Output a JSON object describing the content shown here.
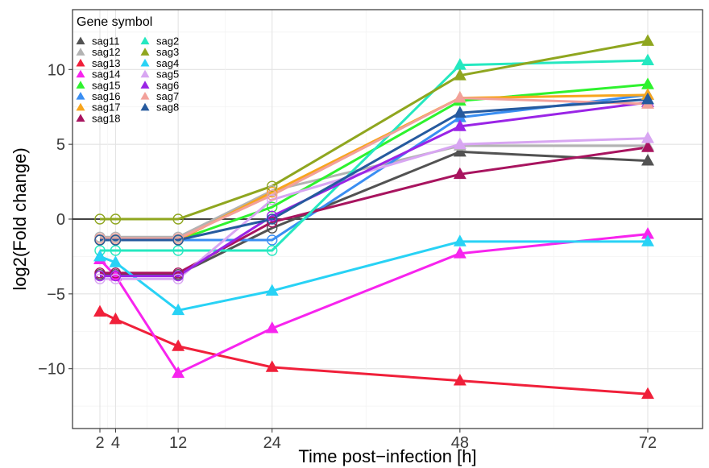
{
  "chart_data": {
    "type": "line",
    "xlabel": "Time post−infection [h]",
    "ylabel": "log2(Fold change)",
    "x": [
      2,
      4,
      12,
      24,
      48,
      72
    ],
    "x_ticks": [
      2,
      4,
      12,
      24,
      48,
      72
    ],
    "y_ticks": [
      -10,
      -5,
      0,
      5,
      10
    ],
    "xlim": [
      -1.5,
      79
    ],
    "ylim": [
      -14,
      14
    ],
    "reference_line_y": 0,
    "grid": true,
    "legend": {
      "title": "Gene symbol",
      "placement": "top-left"
    },
    "marker_note": "hollow circle = not significant, filled triangle = significant",
    "series": [
      {
        "name": "sag11",
        "color": "#525252",
        "values": [
          -3.7,
          -3.7,
          -3.7,
          -0.6,
          4.5,
          3.9
        ],
        "significant": [
          false,
          false,
          false,
          false,
          true,
          true
        ]
      },
      {
        "name": "sag12",
        "color": "#b3b3b3",
        "values": [
          -1.2,
          -1.2,
          -1.2,
          1.9,
          4.9,
          4.9
        ],
        "significant": [
          false,
          false,
          false,
          false,
          true,
          true
        ]
      },
      {
        "name": "sag13",
        "color": "#f0203a",
        "values": [
          -6.2,
          -6.7,
          -8.5,
          -9.9,
          -10.8,
          -11.7
        ],
        "significant": [
          true,
          true,
          true,
          true,
          true,
          true
        ]
      },
      {
        "name": "sag14",
        "color": "#f724ee",
        "values": [
          -2.7,
          -3.8,
          -10.3,
          -7.3,
          -2.3,
          -1.0
        ],
        "significant": [
          true,
          true,
          true,
          true,
          true,
          true
        ]
      },
      {
        "name": "sag15",
        "color": "#2ef22e",
        "values": [
          -1.4,
          -1.4,
          -1.4,
          0.8,
          7.9,
          9.0
        ],
        "significant": [
          false,
          false,
          false,
          false,
          true,
          true
        ]
      },
      {
        "name": "sag16",
        "color": "#3a8ef2",
        "values": [
          -1.4,
          -1.4,
          -1.4,
          -1.4,
          6.8,
          8.3
        ],
        "significant": [
          false,
          false,
          false,
          false,
          true,
          true
        ]
      },
      {
        "name": "sag17",
        "color": "#f7a51d",
        "values": [
          -1.4,
          -1.4,
          -1.4,
          1.8,
          8.1,
          8.3
        ],
        "significant": [
          false,
          false,
          false,
          false,
          true,
          true
        ]
      },
      {
        "name": "sag18",
        "color": "#a8145f",
        "values": [
          -3.6,
          -3.6,
          -3.6,
          -0.2,
          3.0,
          4.8
        ],
        "significant": [
          false,
          false,
          false,
          false,
          true,
          true
        ]
      },
      {
        "name": "sag2",
        "color": "#25e8c0",
        "values": [
          -2.1,
          -2.1,
          -2.1,
          -2.1,
          10.3,
          10.6
        ],
        "significant": [
          false,
          false,
          false,
          false,
          true,
          true
        ]
      },
      {
        "name": "sag3",
        "color": "#8fa61f",
        "values": [
          0,
          0,
          0,
          2.2,
          9.6,
          11.9
        ],
        "significant": [
          false,
          false,
          false,
          false,
          true,
          true
        ]
      },
      {
        "name": "sag4",
        "color": "#28d2f5",
        "values": [
          -2.5,
          -2.9,
          -6.1,
          -4.8,
          -1.5,
          -1.5
        ],
        "significant": [
          true,
          true,
          true,
          true,
          true,
          true
        ]
      },
      {
        "name": "sag5",
        "color": "#d8a6f2",
        "values": [
          -4.0,
          -4.0,
          -4.0,
          1.3,
          5.0,
          5.4
        ],
        "significant": [
          false,
          false,
          false,
          false,
          true,
          true
        ]
      },
      {
        "name": "sag6",
        "color": "#9a24e6",
        "values": [
          -3.8,
          -3.8,
          -3.8,
          0.2,
          6.2,
          7.8
        ],
        "significant": [
          false,
          false,
          false,
          false,
          true,
          true
        ]
      },
      {
        "name": "sag7",
        "color": "#f2a09a",
        "values": [
          -1.3,
          -1.3,
          -1.3,
          1.6,
          8.1,
          7.7
        ],
        "significant": [
          false,
          false,
          false,
          false,
          true,
          true
        ]
      },
      {
        "name": "sag8",
        "color": "#265a9e",
        "values": [
          -1.4,
          -1.4,
          -1.4,
          0.0,
          7.1,
          8.0
        ],
        "significant": [
          false,
          false,
          false,
          false,
          true,
          true
        ]
      }
    ]
  }
}
